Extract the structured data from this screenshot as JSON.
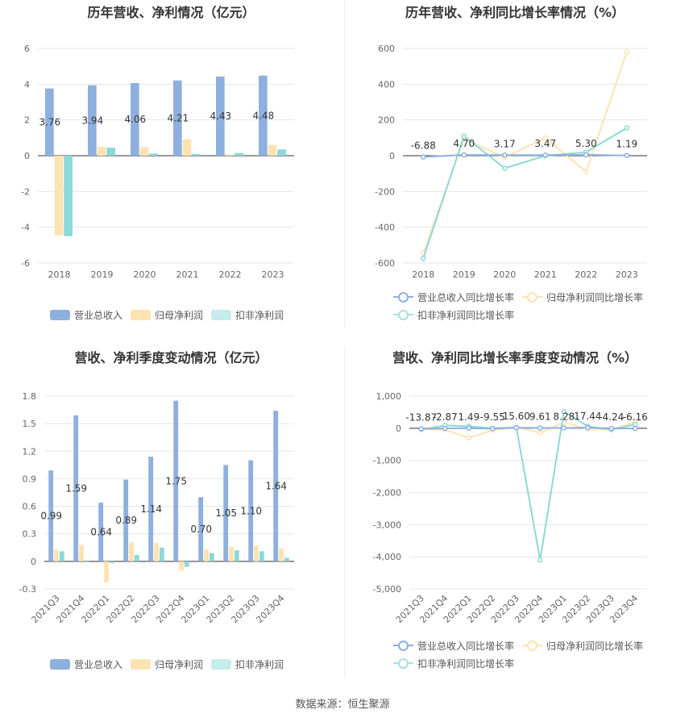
{
  "source": "数据来源：恒生聚源",
  "colors": {
    "revenue": "#8eb0de",
    "net": "#fde3b2",
    "deducted": "#8dd8d8",
    "grid": "#e5e5e5",
    "axis": "#333333"
  },
  "legend_bar": [
    "营业总收入",
    "归母净利润",
    "扣非净利润"
  ],
  "legend_line": [
    "营业总收入同比增长率",
    "归母净利润同比增长率",
    "扣非净利润同比增长率"
  ],
  "chart_data": [
    {
      "type": "bar",
      "title": "历年营收、净利情况（亿元）",
      "categories": [
        "2018",
        "2019",
        "2020",
        "2021",
        "2022",
        "2023"
      ],
      "ylim": [
        -6,
        6
      ],
      "yticks": [
        "6",
        "4",
        "2",
        "0",
        "-2",
        "-4",
        "-6"
      ],
      "ytick_values": [
        6,
        4,
        2,
        0,
        -2,
        -4,
        -6
      ],
      "series": [
        {
          "name": "营业总收入",
          "values": [
            3.76,
            3.94,
            4.06,
            4.21,
            4.43,
            4.48
          ]
        },
        {
          "name": "归母净利润",
          "values": [
            -4.45,
            0.5,
            0.48,
            0.92,
            0.07,
            0.6
          ]
        },
        {
          "name": "扣非净利润",
          "values": [
            -4.5,
            0.45,
            0.12,
            0.1,
            0.15,
            0.35
          ]
        }
      ],
      "data_labels": [
        "3.76",
        "3.94",
        "4.06",
        "4.21",
        "4.43",
        "4.48"
      ],
      "legend": "bottom"
    },
    {
      "type": "line",
      "title": "历年营收、净利同比增长率情况（%）",
      "categories": [
        "2018",
        "2019",
        "2020",
        "2021",
        "2022",
        "2023"
      ],
      "ylim": [
        -600,
        600
      ],
      "yticks": [
        "600",
        "400",
        "200",
        "0",
        "-200",
        "-400",
        "-600"
      ],
      "ytick_values": [
        600,
        400,
        200,
        0,
        -200,
        -400,
        -600
      ],
      "series": [
        {
          "name": "营业总收入同比增长率",
          "values": [
            -6.88,
            4.7,
            3.17,
            3.47,
            5.3,
            1.19
          ]
        },
        {
          "name": "归母净利润同比增长率",
          "values": [
            -545,
            95,
            -10,
            100,
            -90,
            580
          ]
        },
        {
          "name": "扣非净利润同比增长率",
          "values": [
            -575,
            110,
            -70,
            0,
            20,
            155
          ]
        }
      ],
      "data_labels": [
        "-6.88",
        "4.70",
        "3.17",
        "3.47",
        "5.30",
        "1.19"
      ],
      "legend": "bottom"
    },
    {
      "type": "bar",
      "title": "营收、净利季度变动情况（亿元）",
      "categories": [
        "2021Q3",
        "2021Q4",
        "2022Q1",
        "2022Q2",
        "2022Q3",
        "2022Q4",
        "2023Q1",
        "2023Q2",
        "2023Q3",
        "2023Q4"
      ],
      "ylim": [
        -0.3,
        1.8
      ],
      "yticks": [
        "1.8",
        "1.5",
        "1.2",
        "0.9",
        "0.6",
        "0.3",
        "0",
        "-0.3"
      ],
      "ytick_values": [
        1.8,
        1.5,
        1.2,
        0.9,
        0.6,
        0.3,
        0,
        -0.3
      ],
      "series": [
        {
          "name": "营业总收入",
          "values": [
            0.99,
            1.59,
            0.64,
            0.89,
            1.14,
            1.75,
            0.7,
            1.05,
            1.1,
            1.64
          ]
        },
        {
          "name": "归母净利润",
          "values": [
            0.13,
            0.18,
            -0.23,
            0.21,
            0.2,
            -0.1,
            0.13,
            0.16,
            0.17,
            0.14
          ]
        },
        {
          "name": "扣非净利润",
          "values": [
            0.11,
            0.0,
            -0.02,
            0.07,
            0.15,
            -0.06,
            0.09,
            0.12,
            0.11,
            0.04
          ]
        }
      ],
      "data_labels": [
        "0.99",
        "1.59",
        "0.64",
        "0.89",
        "1.14",
        "1.75",
        "0.70",
        "1.05",
        "1.10",
        "1.64"
      ],
      "legend": "bottom"
    },
    {
      "type": "line",
      "title": "营收、净利同比增长率季度变动情况（%）",
      "categories": [
        "2021Q3",
        "2021Q4",
        "2022Q1",
        "2022Q2",
        "2022Q3",
        "2022Q4",
        "2023Q1",
        "2023Q2",
        "2023Q3",
        "2023Q4"
      ],
      "ylim": [
        -5000,
        1000
      ],
      "yticks": [
        "1,000",
        "0",
        "-1,000",
        "-2,000",
        "-3,000",
        "-4,000",
        "-5,000"
      ],
      "ytick_values": [
        1000,
        0,
        -1000,
        -2000,
        -3000,
        -4000,
        -5000
      ],
      "series": [
        {
          "name": "营业总收入同比增长率",
          "values": [
            -13.87,
            -2.87,
            1.49,
            -9.55,
            15.6,
            9.61,
            8.28,
            17.44,
            -4.24,
            -6.16
          ]
        },
        {
          "name": "归母净利润同比增长率",
          "values": [
            -30,
            -50,
            -300,
            -60,
            30,
            -140,
            180,
            -20,
            -50,
            200
          ]
        },
        {
          "name": "扣非净利润同比增长率",
          "values": [
            -40,
            90,
            60,
            0,
            20,
            -4100,
            520,
            60,
            -40,
            120
          ]
        }
      ],
      "data_labels": [
        "-13.87",
        "-2.87",
        "1.49",
        "-9.55",
        "15.60",
        "9.61",
        "8.28",
        "17.44",
        "-4.24",
        "-6.16"
      ],
      "legend": "bottom"
    }
  ]
}
